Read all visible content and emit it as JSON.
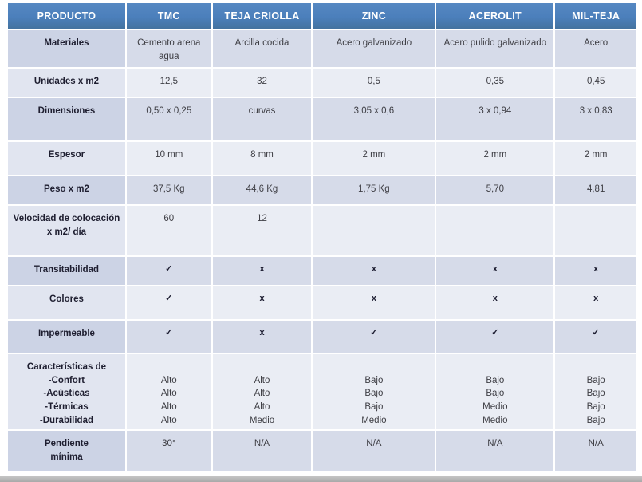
{
  "colors": {
    "header_blue": "#4C80BC",
    "band_dark": "#D6DBE9",
    "band_light": "#EAEDF4",
    "header_text": "#FFFFFF",
    "bottom_bar_grey": "#ADADAD"
  },
  "table": {
    "columns": [
      "PRODUCTO",
      "TMC",
      "TEJA CRIOLLA",
      "ZINC",
      "ACEROLIT",
      "MIL-TEJA"
    ],
    "rows": [
      {
        "label": "Materiales",
        "cells": [
          "Cemento arena\nagua",
          "Arcilla cocida",
          "Acero galvanizado",
          "Acero pulido galvanizado",
          "Acero"
        ]
      },
      {
        "label": "Unidades x m2",
        "cells": [
          "12,5",
          "32",
          "0,5",
          "0,35",
          "0,45"
        ]
      },
      {
        "label": "Dimensiones",
        "cells": [
          "0,50 x 0,25",
          "curvas",
          "3,05 x 0,6",
          "3 x 0,94",
          "3 x 0,83"
        ]
      },
      {
        "label": "Espesor",
        "cells": [
          "10 mm",
          "8 mm",
          "2 mm",
          "2 mm",
          "2 mm"
        ]
      },
      {
        "label": "Peso x m2",
        "cells": [
          "37,5 Kg",
          "44,6 Kg",
          "1,75 Kg",
          "5,70",
          "4,81"
        ]
      },
      {
        "label": "Velocidad de colocación\nx m2/ día",
        "cells": [
          "60",
          "12",
          "",
          "",
          ""
        ]
      },
      {
        "label": "Transitabilidad",
        "cells": [
          "✓",
          "x",
          "x",
          "x",
          "x"
        ]
      },
      {
        "label": "Colores",
        "cells": [
          "✓",
          "x",
          "x",
          "x",
          "x"
        ]
      },
      {
        "label": "Impermeable",
        "cells": [
          "✓",
          "x",
          "✓",
          "✓",
          "✓"
        ]
      },
      {
        "label": "Características de\n-Confort\n-Acústicas\n-Térmicas\n-Durabilidad",
        "cells": [
          "\nAlto\nAlto\nAlto\nAlto",
          "\nAlto\nAlto\nAlto\nMedio",
          "\nBajo\nBajo\nBajo\nMedio",
          "\nBajo\nBajo\nMedio\nMedio",
          "\nBajo\nBajo\nBajo\nBajo"
        ]
      },
      {
        "label": "Pendiente\nmínima",
        "cells": [
          "30°",
          "N/A",
          "N/A",
          "N/A",
          "N/A"
        ]
      }
    ]
  }
}
